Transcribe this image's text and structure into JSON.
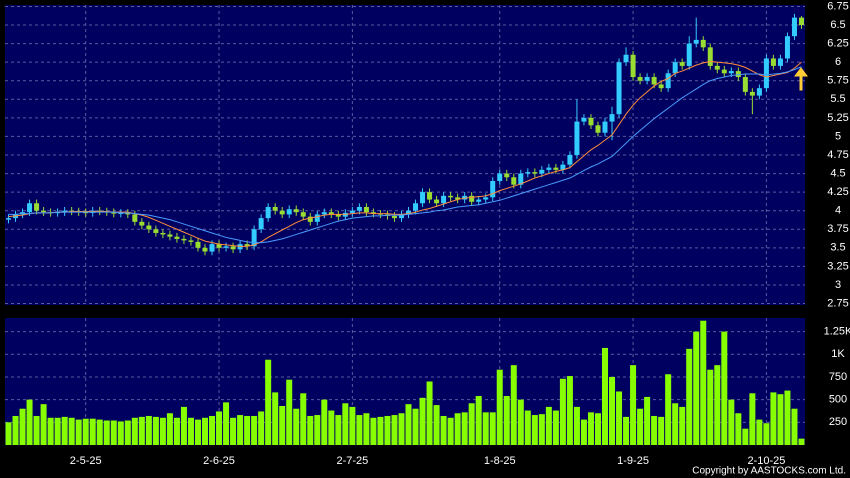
{
  "chart_data": [
    {
      "type": "candlestick",
      "up_color": "#33ccff",
      "down_color": "#99dd33",
      "categories": [
        null,
        null,
        null,
        null,
        null,
        null,
        null,
        null,
        null,
        null,
        null,
        "2-5-25",
        null,
        null,
        null,
        null,
        null,
        null,
        null,
        null,
        null,
        null,
        null,
        null,
        null,
        null,
        null,
        null,
        null,
        null,
        "2-6-25",
        null,
        null,
        null,
        null,
        null,
        null,
        null,
        null,
        null,
        null,
        null,
        null,
        null,
        null,
        null,
        null,
        null,
        null,
        "2-7-25",
        null,
        null,
        null,
        null,
        null,
        null,
        null,
        null,
        null,
        null,
        null,
        null,
        null,
        null,
        null,
        null,
        null,
        null,
        null,
        null,
        "1-8-25",
        null,
        null,
        null,
        null,
        null,
        null,
        null,
        null,
        null,
        null,
        null,
        null,
        null,
        null,
        null,
        null,
        null,
        null,
        "1-9-25",
        null,
        null,
        null,
        null,
        null,
        null,
        null,
        null,
        null,
        null,
        null,
        null,
        null,
        null,
        null,
        null,
        null,
        null,
        "2-10-25",
        null,
        null,
        null,
        null,
        null
      ],
      "open": [
        3.88,
        3.9,
        3.95,
        3.98,
        4.1,
        4.0,
        3.98,
        3.97,
        3.98,
        4.0,
        3.99,
        3.98,
        3.97,
        4.0,
        3.99,
        3.98,
        3.96,
        3.97,
        3.95,
        3.85,
        3.8,
        3.75,
        3.7,
        3.68,
        3.65,
        3.62,
        3.6,
        3.58,
        3.5,
        3.45,
        3.55,
        3.5,
        3.52,
        3.48,
        3.55,
        3.52,
        3.75,
        3.9,
        4.05,
        4.0,
        3.95,
        4.02,
        3.98,
        3.92,
        3.85,
        3.95,
        3.98,
        3.95,
        3.92,
        3.97,
        4.0,
        4.05,
        3.98,
        3.96,
        3.95,
        3.93,
        3.9,
        3.95,
        4.0,
        4.1,
        4.25,
        4.15,
        4.1,
        4.2,
        4.18,
        4.15,
        4.2,
        4.12,
        4.15,
        4.18,
        4.4,
        4.5,
        4.45,
        4.35,
        4.5,
        4.52,
        4.5,
        4.55,
        4.58,
        4.55,
        4.62,
        4.75,
        5.2,
        5.25,
        5.15,
        5.05,
        5.2,
        5.3,
        6.0,
        6.1,
        5.8,
        5.75,
        5.8,
        5.7,
        5.65,
        5.85,
        6.0,
        5.95,
        6.25,
        6.3,
        6.2,
        5.95,
        5.9,
        5.85,
        5.88,
        5.8,
        5.6,
        5.55,
        5.65,
        6.05,
        5.95,
        6.05,
        6.35,
        6.6
      ],
      "high": [
        3.95,
        4.0,
        4.03,
        4.15,
        4.15,
        4.05,
        4.03,
        4.03,
        4.05,
        4.05,
        4.04,
        4.03,
        4.05,
        4.05,
        4.04,
        4.03,
        4.02,
        4.02,
        4.0,
        3.9,
        3.85,
        3.8,
        3.75,
        3.73,
        3.7,
        3.67,
        3.65,
        3.63,
        3.55,
        3.6,
        3.6,
        3.57,
        3.57,
        3.6,
        3.6,
        3.8,
        3.95,
        4.1,
        4.1,
        4.05,
        4.07,
        4.07,
        4.03,
        3.97,
        4.0,
        4.03,
        4.03,
        4.0,
        4.02,
        4.05,
        4.1,
        4.1,
        4.03,
        4.01,
        4.0,
        3.98,
        4.0,
        4.05,
        4.15,
        4.3,
        4.3,
        4.2,
        4.25,
        4.25,
        4.23,
        4.25,
        4.25,
        4.2,
        4.23,
        4.45,
        4.55,
        4.55,
        4.5,
        4.55,
        4.57,
        4.57,
        4.6,
        4.63,
        4.63,
        4.67,
        4.8,
        5.5,
        5.3,
        5.3,
        5.2,
        5.25,
        5.4,
        6.05,
        6.2,
        6.15,
        5.85,
        5.85,
        5.85,
        5.75,
        5.9,
        6.05,
        6.05,
        6.35,
        6.6,
        6.35,
        6.25,
        6.0,
        5.95,
        5.93,
        5.93,
        5.85,
        5.65,
        5.7,
        6.1,
        6.1,
        6.1,
        6.4,
        6.65,
        6.62
      ],
      "low": [
        3.83,
        3.85,
        3.9,
        3.93,
        3.95,
        3.93,
        3.92,
        3.92,
        3.93,
        3.94,
        3.93,
        3.92,
        3.92,
        3.94,
        3.93,
        3.91,
        3.91,
        3.9,
        3.8,
        3.75,
        3.7,
        3.65,
        3.63,
        3.6,
        3.57,
        3.55,
        3.53,
        3.45,
        3.4,
        3.4,
        3.45,
        3.45,
        3.43,
        3.43,
        3.47,
        3.47,
        3.7,
        3.85,
        3.95,
        3.9,
        3.9,
        3.93,
        3.87,
        3.8,
        3.8,
        3.9,
        3.9,
        3.87,
        3.87,
        3.92,
        3.95,
        3.93,
        3.91,
        3.9,
        3.88,
        3.85,
        3.85,
        3.9,
        3.95,
        4.05,
        4.1,
        4.05,
        4.05,
        4.13,
        4.1,
        4.1,
        4.07,
        4.07,
        4.1,
        4.13,
        4.35,
        4.4,
        4.3,
        4.3,
        4.45,
        4.45,
        4.45,
        4.5,
        4.5,
        4.5,
        4.57,
        4.7,
        5.15,
        5.1,
        5.0,
        5.0,
        4.95,
        5.25,
        5.95,
        5.75,
        5.7,
        5.7,
        5.65,
        5.6,
        5.6,
        5.8,
        5.9,
        5.9,
        6.2,
        6.15,
        5.9,
        5.85,
        5.8,
        5.8,
        5.75,
        5.55,
        5.3,
        5.5,
        5.6,
        5.9,
        5.9,
        6.0,
        6.3,
        6.45
      ],
      "close": [
        3.9,
        3.95,
        3.98,
        4.1,
        4.0,
        3.98,
        3.97,
        3.98,
        4.0,
        3.99,
        3.98,
        3.97,
        4.0,
        3.99,
        3.98,
        3.96,
        3.97,
        3.95,
        3.85,
        3.8,
        3.75,
        3.7,
        3.68,
        3.65,
        3.62,
        3.6,
        3.58,
        3.5,
        3.45,
        3.55,
        3.5,
        3.52,
        3.48,
        3.55,
        3.52,
        3.75,
        3.9,
        4.05,
        4.0,
        3.95,
        4.02,
        3.98,
        3.92,
        3.85,
        3.95,
        3.98,
        3.95,
        3.92,
        3.97,
        4.0,
        4.05,
        3.98,
        3.96,
        3.95,
        3.93,
        3.9,
        3.95,
        4.0,
        4.1,
        4.25,
        4.15,
        4.1,
        4.2,
        4.18,
        4.15,
        4.2,
        4.12,
        4.15,
        4.18,
        4.4,
        4.5,
        4.45,
        4.35,
        4.5,
        4.52,
        4.5,
        4.55,
        4.58,
        4.55,
        4.62,
        4.75,
        5.2,
        5.25,
        5.15,
        5.05,
        5.2,
        5.3,
        6.0,
        6.1,
        5.8,
        5.75,
        5.8,
        5.7,
        5.65,
        5.85,
        6.0,
        5.95,
        6.25,
        6.3,
        6.2,
        5.95,
        5.9,
        5.85,
        5.88,
        5.8,
        5.6,
        5.55,
        5.65,
        6.05,
        5.95,
        6.05,
        6.35,
        6.6,
        6.5
      ],
      "series": [
        {
          "color": "#ff8c3a",
          "values": [
            3.92,
            3.93,
            3.94,
            3.96,
            3.97,
            3.97,
            3.97,
            3.98,
            3.98,
            3.99,
            3.99,
            3.99,
            3.99,
            3.99,
            3.99,
            3.98,
            3.98,
            3.98,
            3.96,
            3.94,
            3.91,
            3.87,
            3.83,
            3.79,
            3.75,
            3.71,
            3.67,
            3.63,
            3.59,
            3.57,
            3.55,
            3.54,
            3.53,
            3.52,
            3.52,
            3.54,
            3.58,
            3.64,
            3.69,
            3.74,
            3.79,
            3.84,
            3.88,
            3.9,
            3.92,
            3.94,
            3.95,
            3.95,
            3.95,
            3.96,
            3.97,
            3.97,
            3.96,
            3.96,
            3.96,
            3.95,
            3.95,
            3.96,
            3.98,
            4.01,
            4.03,
            4.06,
            4.09,
            4.12,
            4.15,
            4.17,
            4.18,
            4.19,
            4.2,
            4.23,
            4.27,
            4.3,
            4.33,
            4.36,
            4.4,
            4.44,
            4.47,
            4.5,
            4.53,
            4.55,
            4.58,
            4.66,
            4.74,
            4.82,
            4.88,
            4.95,
            5.02,
            5.16,
            5.3,
            5.42,
            5.52,
            5.6,
            5.68,
            5.74,
            5.78,
            5.85,
            5.88,
            5.92,
            5.96,
            5.99,
            6.01,
            6.0,
            5.99,
            5.98,
            5.96,
            5.93,
            5.88,
            5.83,
            5.8,
            5.82,
            5.84,
            5.86,
            5.92,
            6.0
          ]
        },
        {
          "color": "#4a9cff",
          "values": [
            3.95,
            3.95,
            3.96,
            3.96,
            3.97,
            3.97,
            3.97,
            3.98,
            3.98,
            3.98,
            3.98,
            3.98,
            3.98,
            3.98,
            3.98,
            3.98,
            3.97,
            3.97,
            3.96,
            3.95,
            3.94,
            3.92,
            3.9,
            3.88,
            3.85,
            3.82,
            3.79,
            3.76,
            3.73,
            3.7,
            3.67,
            3.64,
            3.62,
            3.6,
            3.58,
            3.57,
            3.57,
            3.58,
            3.6,
            3.62,
            3.65,
            3.68,
            3.71,
            3.74,
            3.77,
            3.8,
            3.83,
            3.86,
            3.88,
            3.9,
            3.91,
            3.92,
            3.93,
            3.93,
            3.94,
            3.94,
            3.94,
            3.95,
            3.96,
            3.97,
            3.98,
            4.0,
            4.01,
            4.03,
            4.05,
            4.06,
            4.07,
            4.08,
            4.1,
            4.12,
            4.14,
            4.17,
            4.2,
            4.23,
            4.26,
            4.29,
            4.32,
            4.35,
            4.38,
            4.41,
            4.44,
            4.49,
            4.54,
            4.59,
            4.63,
            4.68,
            4.73,
            4.82,
            4.91,
            5.0,
            5.08,
            5.16,
            5.24,
            5.31,
            5.38,
            5.45,
            5.52,
            5.58,
            5.64,
            5.7,
            5.75,
            5.78,
            5.8,
            5.82,
            5.83,
            5.84,
            5.84,
            5.84,
            5.83,
            5.84,
            5.85,
            5.87,
            5.9,
            5.94
          ]
        }
      ],
      "ylim": [
        2.73,
        6.77
      ],
      "yticks": [
        2.75,
        3,
        3.25,
        3.5,
        3.75,
        4,
        4.25,
        4.5,
        4.75,
        5,
        5.25,
        5.5,
        5.75,
        6,
        6.25,
        6.5,
        6.75
      ],
      "grid": true
    },
    {
      "type": "bar",
      "color": "#88ff00",
      "values": [
        250,
        320,
        400,
        500,
        320,
        450,
        300,
        300,
        310,
        300,
        280,
        290,
        290,
        280,
        270,
        270,
        260,
        270,
        300,
        310,
        320,
        310,
        300,
        350,
        300,
        420,
        300,
        280,
        300,
        320,
        370,
        470,
        300,
        330,
        320,
        320,
        370,
        940,
        580,
        430,
        720,
        400,
        570,
        320,
        330,
        500,
        380,
        330,
        460,
        420,
        330,
        350,
        300,
        310,
        320,
        330,
        350,
        450,
        400,
        520,
        700,
        440,
        320,
        300,
        350,
        360,
        460,
        540,
        360,
        360,
        830,
        540,
        880,
        500,
        380,
        330,
        340,
        420,
        380,
        730,
        760,
        420,
        280,
        360,
        350,
        1070,
        750,
        590,
        310,
        880,
        400,
        530,
        320,
        310,
        780,
        460,
        420,
        1060,
        1250,
        1370,
        830,
        880,
        1250,
        500,
        350,
        180,
        570,
        280,
        240,
        580,
        560,
        600,
        400,
        70
      ],
      "ylim": [
        0,
        1400
      ],
      "yticks": [
        250,
        500,
        750,
        {
          "value": 1000,
          "label": "1K"
        },
        {
          "value": 1250,
          "label": "1.25K"
        }
      ],
      "grid": true
    }
  ],
  "copyright": "Copyright by AASTOCKS.com Ltd."
}
